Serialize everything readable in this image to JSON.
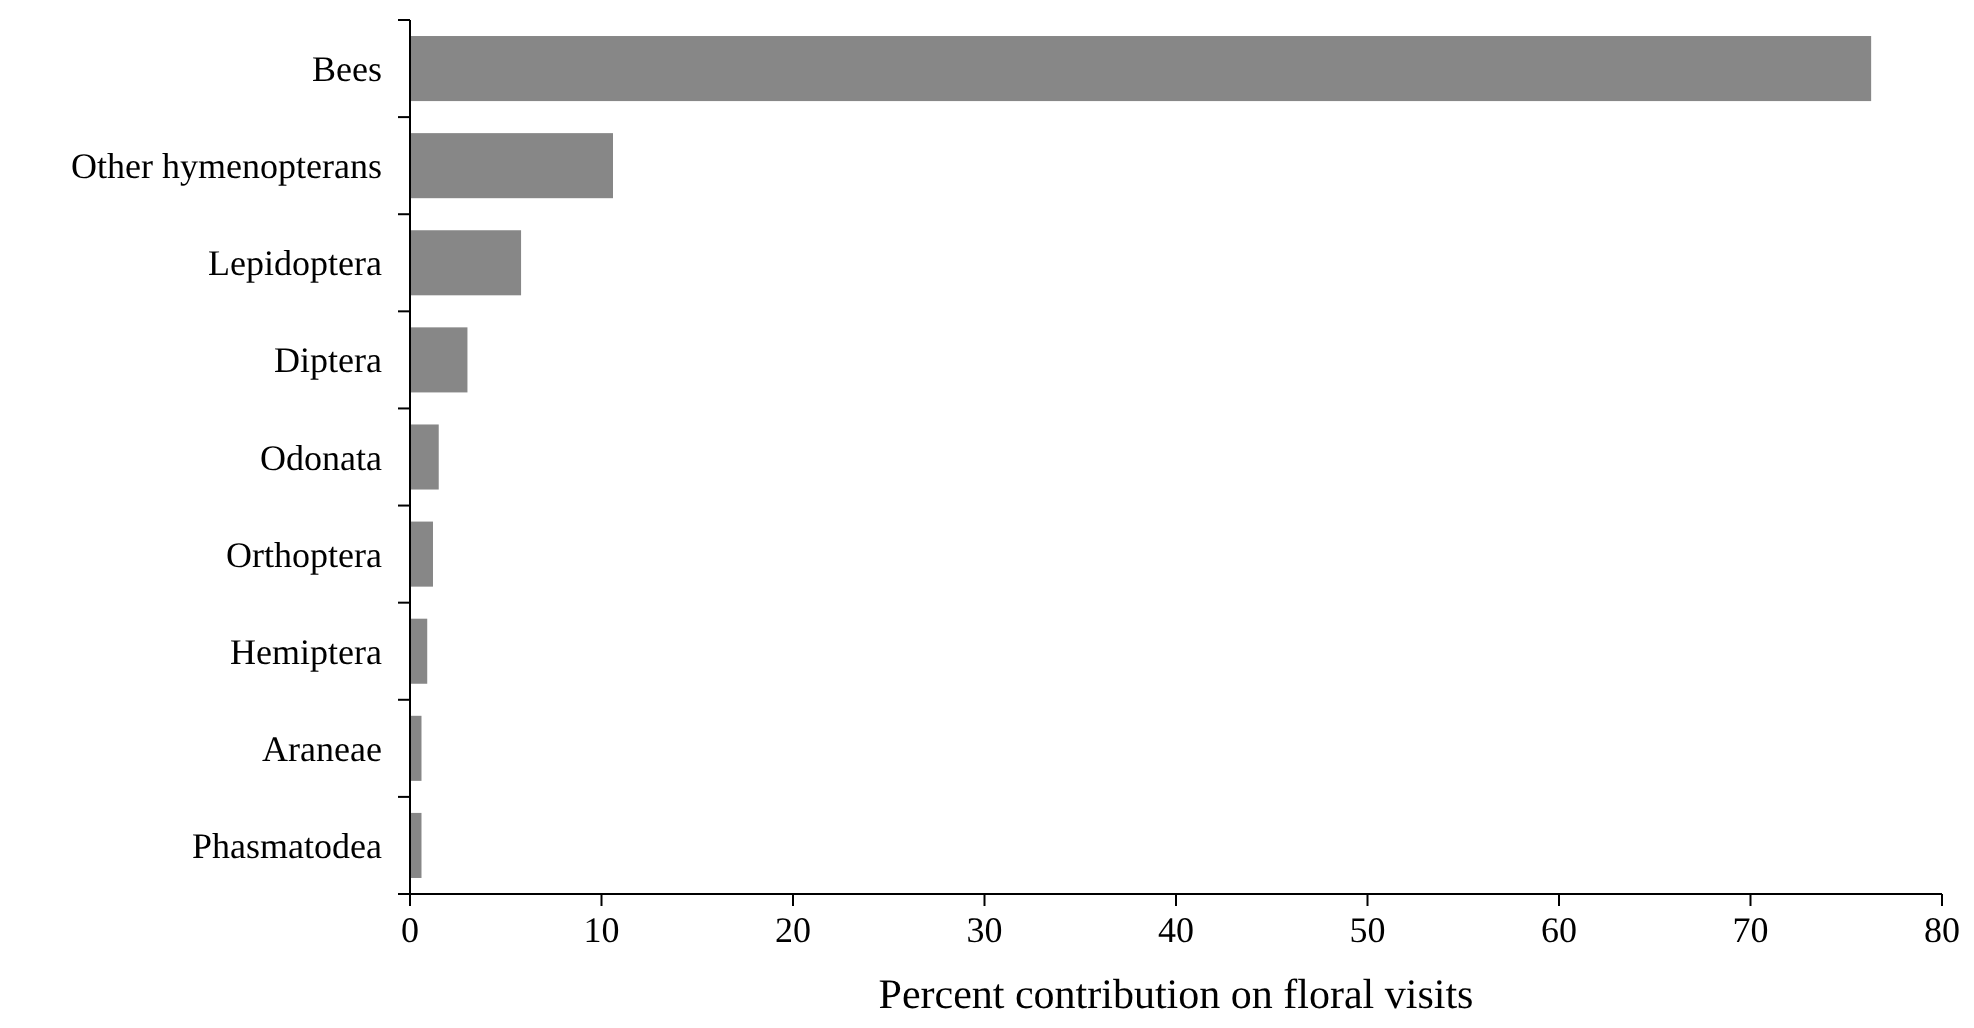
{
  "chart_data": {
    "type": "bar",
    "orientation": "horizontal",
    "xlabel": "Percent contribution on floral visits",
    "categories": [
      "Bees",
      "Other hymenopterans",
      "Lepidoptera",
      "Diptera",
      "Odonata",
      "Orthoptera",
      "Hemiptera",
      "Araneae",
      "Phasmatodea"
    ],
    "values": [
      76.3,
      10.6,
      5.8,
      3.0,
      1.5,
      1.2,
      0.9,
      0.6,
      0.6
    ],
    "color": "#878787",
    "xlim": [
      0,
      80
    ],
    "xticks": [
      0,
      10,
      20,
      30,
      40,
      50,
      60,
      70,
      80
    ],
    "grid": false
  }
}
